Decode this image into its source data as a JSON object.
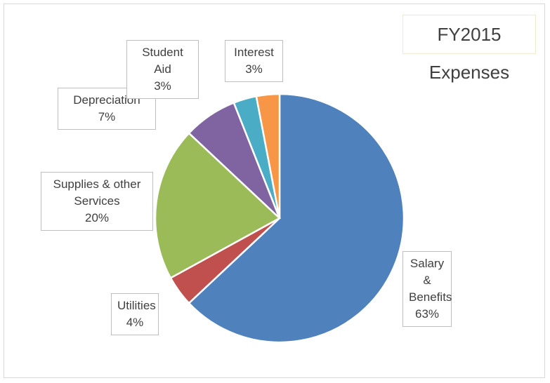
{
  "chart_data": {
    "type": "pie",
    "title": "FY2015 Expenses",
    "categories": [
      "Salary & Benefits",
      "Utilities",
      "Supplies & other Services",
      "Depreciation",
      "Student Aid",
      "Interest"
    ],
    "values": [
      63,
      4,
      20,
      7,
      3,
      3
    ],
    "value_labels": [
      "63%",
      "4%",
      "20%",
      "7%",
      "3%",
      "3%"
    ],
    "colors": [
      "#4f81bd",
      "#c0504d",
      "#9bbb59",
      "#8064a2",
      "#4bacc6",
      "#f79646"
    ]
  }
}
